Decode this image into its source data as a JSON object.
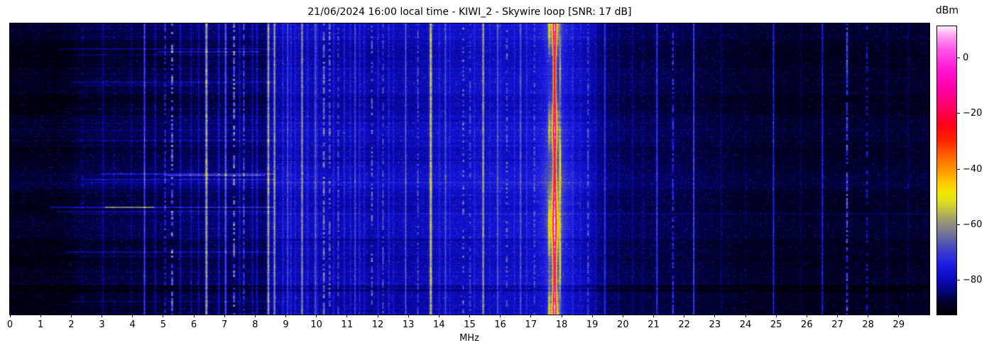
{
  "figure": {
    "title": "21/06/2024 16:00 local time - KIWI_2 - Skywire loop [SNR: 17 dB]"
  },
  "x_axis": {
    "label": "MHz",
    "min": 0,
    "max": 30,
    "tick_labels": [
      "0",
      "1",
      "2",
      "3",
      "4",
      "5",
      "6",
      "7",
      "8",
      "9",
      "10",
      "11",
      "12",
      "13",
      "14",
      "15",
      "16",
      "17",
      "18",
      "19",
      "20",
      "21",
      "22",
      "23",
      "24",
      "25",
      "26",
      "27",
      "28",
      "29"
    ]
  },
  "colorbar": {
    "label": "dBm",
    "min": -92.5,
    "max": 11.5,
    "ticks": [
      {
        "value": 0,
        "label": "0"
      },
      {
        "value": -20,
        "label": "−20"
      },
      {
        "value": -40,
        "label": "−40"
      },
      {
        "value": -60,
        "label": "−60"
      },
      {
        "value": -80,
        "label": "−80"
      }
    ],
    "stops": [
      {
        "v": -92.5,
        "c": "#000003"
      },
      {
        "v": -88,
        "c": "#01012e"
      },
      {
        "v": -84,
        "c": "#04047c"
      },
      {
        "v": -79,
        "c": "#0c0cc0"
      },
      {
        "v": -75,
        "c": "#1b1be4"
      },
      {
        "v": -71,
        "c": "#3333d6"
      },
      {
        "v": -67,
        "c": "#5252b4"
      },
      {
        "v": -63,
        "c": "#757594"
      },
      {
        "v": -60,
        "c": "#8d8d7e"
      },
      {
        "v": -56,
        "c": "#b3b356"
      },
      {
        "v": -52,
        "c": "#dcdc1e"
      },
      {
        "v": -49,
        "c": "#efe800"
      },
      {
        "v": -45,
        "c": "#ffc800"
      },
      {
        "v": -41,
        "c": "#ff9c00"
      },
      {
        "v": -36,
        "c": "#ff6a00"
      },
      {
        "v": -30,
        "c": "#ff2600"
      },
      {
        "v": -24,
        "c": "#ff0018"
      },
      {
        "v": -18,
        "c": "#ff0060"
      },
      {
        "v": -11,
        "c": "#ff00a8"
      },
      {
        "v": -4,
        "c": "#ff14d4"
      },
      {
        "v": 3,
        "c": "#ff55e6"
      },
      {
        "v": 8,
        "c": "#ff9df0"
      },
      {
        "v": 11.5,
        "c": "#fdeffc"
      }
    ]
  },
  "chart_data": {
    "type": "heatmap",
    "subtype": "radio-spectrogram-waterfall",
    "title": "21/06/2024 16:00 local time - KIWI_2 - Skywire loop [SNR: 17 dB]",
    "xlabel": "MHz",
    "value_unit": "dBm",
    "freq_range_mhz": [
      0,
      30
    ],
    "value_range_dbm": [
      -92.5,
      11.5
    ],
    "snr_shown_db": 17,
    "noise_floor_dbm": [
      [
        0,
        -90.5
      ],
      [
        1.6,
        -90
      ],
      [
        2.2,
        -88
      ],
      [
        3,
        -87
      ],
      [
        5,
        -86.5
      ],
      [
        7,
        -86
      ],
      [
        8.35,
        -85.5
      ],
      [
        8.55,
        -80.5
      ],
      [
        9.5,
        -79
      ],
      [
        11,
        -80
      ],
      [
        12.5,
        -80.5
      ],
      [
        14,
        -79.5
      ],
      [
        15.5,
        -78.5
      ],
      [
        17,
        -77.5
      ],
      [
        18.3,
        -77.5
      ],
      [
        18.9,
        -79
      ],
      [
        19.3,
        -84
      ],
      [
        20,
        -86
      ],
      [
        21,
        -87
      ],
      [
        23,
        -88
      ],
      [
        25,
        -88.5
      ],
      [
        27,
        -89
      ],
      [
        30,
        -89.5
      ]
    ],
    "strong_station_mhz": 17.76,
    "signals": [
      {
        "f": 5.28,
        "lvl": -54,
        "sig": 1.1,
        "m": "d",
        "duty": 0.55
      },
      {
        "f": 6.4,
        "lvl": -49,
        "sig": 1.3,
        "m": "s"
      },
      {
        "f": 7.3,
        "lvl": -53,
        "sig": 1.0,
        "m": "d",
        "duty": 0.55
      },
      {
        "f": 8.42,
        "lvl": -50,
        "sig": 1.2,
        "m": "s"
      },
      {
        "f": 8.62,
        "lvl": -52,
        "sig": 1.0,
        "m": "s"
      },
      {
        "f": 9.52,
        "lvl": -53,
        "sig": 1.0,
        "m": "s"
      },
      {
        "f": 10.23,
        "lvl": -55,
        "sig": 1.0,
        "m": "d",
        "duty": 0.7
      },
      {
        "f": 10.42,
        "lvl": -57,
        "sig": 0.9,
        "m": "d",
        "duty": 0.6
      },
      {
        "f": 11.8,
        "lvl": -57,
        "sig": 0.9,
        "m": "d",
        "duty": 0.45
      },
      {
        "f": 13.72,
        "lvl": -46,
        "sig": 1.3,
        "m": "s"
      },
      {
        "f": 14.78,
        "lvl": -58,
        "sig": 0.9,
        "m": "d",
        "duty": 0.4
      },
      {
        "f": 15.43,
        "lvl": -52,
        "sig": 1.0,
        "m": "s"
      },
      {
        "f": 16.2,
        "lvl": -60,
        "sig": 0.9,
        "m": "d",
        "duty": 0.4
      },
      {
        "f": 17.76,
        "lvl": -16,
        "sig": 1.4,
        "m": "w"
      },
      {
        "f": 17.76,
        "lvl": -50,
        "sig": 4.5,
        "m": "b"
      },
      {
        "f": 17.76,
        "lvl": -66,
        "sig": 13,
        "m": "g"
      },
      {
        "f": 17.58,
        "lvl": -56,
        "sig": 0.9,
        "m": "b"
      },
      {
        "f": 17.94,
        "lvl": -56,
        "sig": 0.9,
        "m": "b"
      },
      {
        "f": 4.38,
        "lvl": -62,
        "sig": 0.8,
        "m": "s"
      },
      {
        "f": 5.05,
        "lvl": -67,
        "sig": 0.8,
        "m": "d",
        "duty": 0.5
      },
      {
        "f": 7.02,
        "lvl": -64,
        "sig": 0.8,
        "m": "s"
      },
      {
        "f": 7.62,
        "lvl": -63,
        "sig": 0.8,
        "m": "d",
        "duty": 0.7
      },
      {
        "f": 9.05,
        "lvl": -64,
        "sig": 0.8,
        "m": "s"
      },
      {
        "f": 9.95,
        "lvl": -63,
        "sig": 0.8,
        "m": "s"
      },
      {
        "f": 10.7,
        "lvl": -64,
        "sig": 0.8,
        "m": "d",
        "duty": 0.6
      },
      {
        "f": 11.25,
        "lvl": -64,
        "sig": 0.8,
        "m": "s"
      },
      {
        "f": 12.16,
        "lvl": -62,
        "sig": 0.8,
        "m": "d",
        "duty": 0.6
      },
      {
        "f": 12.9,
        "lvl": -62,
        "sig": 0.8,
        "m": "s"
      },
      {
        "f": 13.3,
        "lvl": -63,
        "sig": 0.8,
        "m": "d",
        "duty": 0.6
      },
      {
        "f": 14.2,
        "lvl": -64,
        "sig": 0.8,
        "m": "s"
      },
      {
        "f": 15.0,
        "lvl": -63,
        "sig": 0.8,
        "m": "d",
        "duty": 0.5
      },
      {
        "f": 15.9,
        "lvl": -62,
        "sig": 0.8,
        "m": "s"
      },
      {
        "f": 16.65,
        "lvl": -62,
        "sig": 0.8,
        "m": "s"
      },
      {
        "f": 17.1,
        "lvl": -63,
        "sig": 0.8,
        "m": "d",
        "duty": 0.5
      },
      {
        "f": 18.85,
        "lvl": -62,
        "sig": 0.8,
        "m": "d",
        "duty": 0.6
      },
      {
        "f": 19.4,
        "lvl": -66,
        "sig": 0.8,
        "m": "s"
      },
      {
        "f": 21.1,
        "lvl": -65,
        "sig": 0.8,
        "m": "s"
      },
      {
        "f": 21.62,
        "lvl": -65,
        "sig": 0.8,
        "m": "d",
        "duty": 0.6
      },
      {
        "f": 22.3,
        "lvl": -61,
        "sig": 0.7,
        "m": "s"
      },
      {
        "f": 24.9,
        "lvl": -67,
        "sig": 0.8,
        "m": "s"
      },
      {
        "f": 26.5,
        "lvl": -69,
        "sig": 0.8,
        "m": "s"
      },
      {
        "f": 27.3,
        "lvl": -58,
        "sig": 0.9,
        "m": "d",
        "duty": 0.75
      },
      {
        "f": 27.95,
        "lvl": -69,
        "sig": 0.8,
        "m": "d",
        "duty": 0.5
      },
      {
        "f": 2.35,
        "lvl": -82,
        "sig": 0.8,
        "m": "d",
        "duty": 0.5
      },
      {
        "f": 3.02,
        "lvl": -80,
        "sig": 0.8,
        "m": "s"
      },
      {
        "f": 3.38,
        "lvl": -81,
        "sig": 0.8,
        "m": "d",
        "duty": 0.6
      },
      {
        "f": 3.95,
        "lvl": -82,
        "sig": 0.8,
        "m": "s"
      },
      {
        "f": 4.73,
        "lvl": -79,
        "sig": 0.8,
        "m": "s"
      },
      {
        "f": 5.55,
        "lvl": -77,
        "sig": 0.9,
        "m": "s"
      },
      {
        "f": 5.9,
        "lvl": -79,
        "sig": 0.8,
        "m": "s"
      },
      {
        "f": 6.15,
        "lvl": -78,
        "sig": 0.8,
        "m": "s"
      },
      {
        "f": 6.8,
        "lvl": -75,
        "sig": 0.9,
        "m": "s"
      },
      {
        "f": 7.05,
        "lvl": -77,
        "sig": 0.8,
        "m": "s"
      },
      {
        "f": 7.48,
        "lvl": -77,
        "sig": 0.8,
        "m": "s"
      },
      {
        "f": 7.9,
        "lvl": -76,
        "sig": 0.8,
        "m": "s"
      },
      {
        "f": 8.05,
        "lvl": -75,
        "sig": 0.8,
        "m": "s"
      },
      {
        "f": 8.9,
        "lvl": -73,
        "sig": 0.9,
        "m": "s"
      },
      {
        "f": 9.15,
        "lvl": -72,
        "sig": 0.9,
        "m": "s"
      },
      {
        "f": 9.3,
        "lvl": -73,
        "sig": 0.8,
        "m": "s"
      },
      {
        "f": 9.7,
        "lvl": -72,
        "sig": 0.9,
        "m": "s"
      },
      {
        "f": 10.0,
        "lvl": -72,
        "sig": 0.9,
        "m": "s"
      },
      {
        "f": 10.55,
        "lvl": -73,
        "sig": 0.8,
        "m": "s"
      },
      {
        "f": 10.9,
        "lvl": -72,
        "sig": 0.9,
        "m": "s"
      },
      {
        "f": 11.1,
        "lvl": -73,
        "sig": 0.8,
        "m": "s"
      },
      {
        "f": 11.4,
        "lvl": -72,
        "sig": 0.9,
        "m": "s"
      },
      {
        "f": 11.55,
        "lvl": -73,
        "sig": 0.8,
        "m": "s"
      },
      {
        "f": 12.0,
        "lvl": -73,
        "sig": 0.9,
        "m": "s"
      },
      {
        "f": 12.35,
        "lvl": -73,
        "sig": 0.8,
        "m": "s"
      },
      {
        "f": 12.5,
        "lvl": -74,
        "sig": 0.8,
        "m": "s"
      },
      {
        "f": 14.0,
        "lvl": -73,
        "sig": 0.9,
        "m": "s"
      },
      {
        "f": 14.35,
        "lvl": -74,
        "sig": 0.8,
        "m": "s"
      },
      {
        "f": 15.15,
        "lvl": -73,
        "sig": 0.8,
        "m": "s"
      },
      {
        "f": 15.65,
        "lvl": -74,
        "sig": 0.8,
        "m": "s"
      },
      {
        "f": 16.0,
        "lvl": -73,
        "sig": 0.8,
        "m": "s"
      },
      {
        "f": 16.45,
        "lvl": -73,
        "sig": 0.8,
        "m": "s"
      },
      {
        "f": 16.85,
        "lvl": -72,
        "sig": 0.9,
        "m": "s"
      },
      {
        "f": 18.35,
        "lvl": -73,
        "sig": 0.9,
        "m": "s"
      },
      {
        "f": 18.6,
        "lvl": -74,
        "sig": 0.8,
        "m": "s"
      },
      {
        "f": 19.1,
        "lvl": -77,
        "sig": 0.8,
        "m": "s"
      },
      {
        "f": 19.85,
        "lvl": -80,
        "sig": 0.8,
        "m": "s"
      },
      {
        "f": 20.3,
        "lvl": -81,
        "sig": 0.8,
        "m": "s"
      },
      {
        "f": 20.65,
        "lvl": -82,
        "sig": 0.8,
        "m": "d",
        "duty": 0.6
      },
      {
        "f": 23.2,
        "lvl": -84,
        "sig": 0.8,
        "m": "s"
      },
      {
        "f": 24.0,
        "lvl": -84,
        "sig": 0.8,
        "m": "d",
        "duty": 0.5
      },
      {
        "f": 25.8,
        "lvl": -84,
        "sig": 0.8,
        "m": "s"
      },
      {
        "f": 28.6,
        "lvl": -85,
        "sig": 0.8,
        "m": "s"
      },
      {
        "f": 29.3,
        "lvl": -84,
        "sig": 0.8,
        "m": "s"
      }
    ],
    "impulse_streaks": [
      {
        "t": 0.085,
        "f0": 1.6,
        "f1": 8.6,
        "g": 5
      },
      {
        "t": 0.095,
        "f0": 4.8,
        "f1": 8.2,
        "g": 9
      },
      {
        "t": 0.105,
        "f0": 2.0,
        "f1": 8.6,
        "g": 4
      },
      {
        "t": 0.2,
        "f0": 2.0,
        "f1": 8.6,
        "g": 5
      },
      {
        "t": 0.21,
        "f0": 2.4,
        "f1": 6.0,
        "g": 4
      },
      {
        "t": 0.29,
        "f0": 1.8,
        "f1": 8.6,
        "g": 3.5
      },
      {
        "t": 0.33,
        "f0": 8.5,
        "f1": 19.0,
        "g": -3,
        "rows": 3
      },
      {
        "t": 0.4,
        "f0": 2.2,
        "f1": 8.6,
        "g": 3
      },
      {
        "t": 0.47,
        "f0": 8.5,
        "f1": 19.0,
        "g": -3
      },
      {
        "t": 0.515,
        "f0": 3.0,
        "f1": 8.6,
        "g": 9
      },
      {
        "t": 0.522,
        "f0": 5.0,
        "f1": 8.3,
        "g": 13
      },
      {
        "t": 0.535,
        "f0": 2.3,
        "f1": 8.6,
        "g": 7
      },
      {
        "t": 0.545,
        "f0": 2.3,
        "f1": 19.0,
        "g": 3
      },
      {
        "t": 0.632,
        "f0": 1.3,
        "f1": 8.6,
        "g": 11
      },
      {
        "t": 0.632,
        "f0": 3.1,
        "f1": 4.7,
        "g": 15
      },
      {
        "t": 0.645,
        "f0": 1.5,
        "f1": 8.6,
        "g": 6
      },
      {
        "t": 0.652,
        "f0": 2.0,
        "f1": 30.0,
        "g": 2.5
      },
      {
        "t": 0.74,
        "f0": 8.5,
        "f1": 19.0,
        "g": -3,
        "rows": 3
      },
      {
        "t": 0.785,
        "f0": 1.8,
        "f1": 8.6,
        "g": 6
      },
      {
        "t": 0.8,
        "f0": 2.2,
        "f1": 7.0,
        "g": 4
      },
      {
        "t": 0.9,
        "f0": 0.0,
        "f1": 30.0,
        "g": -4,
        "rows": 5
      },
      {
        "t": 0.915,
        "f0": 0.0,
        "f1": 30.0,
        "g": -5,
        "rows": 4
      },
      {
        "t": 0.955,
        "f0": 2.0,
        "f1": 9.0,
        "g": 4
      }
    ]
  }
}
